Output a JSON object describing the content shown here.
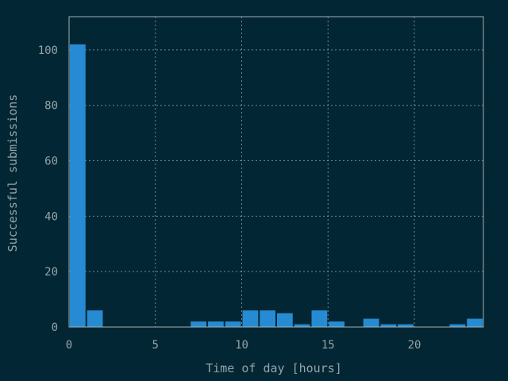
{
  "chart_data": {
    "type": "bar",
    "title": "",
    "xlabel": "Time of day [hours]",
    "ylabel": "Successful submissions",
    "xlim": [
      0,
      24
    ],
    "ylim": [
      0,
      112
    ],
    "xticks": [
      0,
      5,
      10,
      15,
      20
    ],
    "yticks": [
      0,
      20,
      40,
      60,
      80,
      100
    ],
    "bin_width": 1,
    "grid": true,
    "legend": "none",
    "colors": {
      "background": "#022633",
      "bar": "#268bd2",
      "text": "#94a4a8",
      "grid": "#8fa1a6"
    },
    "x": [
      0,
      1,
      2,
      3,
      4,
      5,
      6,
      7,
      8,
      9,
      10,
      11,
      12,
      13,
      14,
      15,
      16,
      17,
      18,
      19,
      20,
      21,
      22,
      23
    ],
    "values": [
      102,
      6,
      0,
      0,
      0,
      0,
      0,
      2,
      2,
      2,
      6,
      6,
      5,
      1,
      6,
      2,
      0,
      3,
      1,
      1,
      0,
      0,
      1,
      3
    ]
  }
}
